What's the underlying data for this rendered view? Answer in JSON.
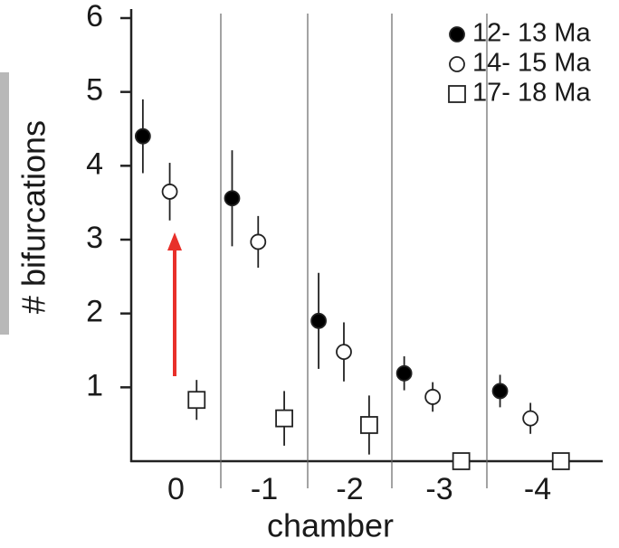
{
  "chart_data": {
    "type": "errorbar",
    "x_label": "chamber",
    "y_label": "# bifurcations",
    "categories": [
      "0",
      "-1",
      "-2",
      "-3",
      "-4"
    ],
    "ylim": [
      0,
      6
    ],
    "yticks": [
      1,
      2,
      3,
      4,
      5,
      6
    ],
    "series": [
      {
        "name": "12- 13 Ma",
        "marker": "circle",
        "fill": "#000000",
        "values": [
          4.4,
          3.56,
          1.9,
          1.19,
          0.95
        ],
        "errors": [
          0.5,
          0.65,
          0.65,
          0.23,
          0.22
        ]
      },
      {
        "name": "14- 15 Ma",
        "marker": "circle",
        "fill": "#ffffff",
        "values": [
          3.65,
          2.97,
          1.48,
          0.87,
          0.58
        ],
        "errors": [
          0.39,
          0.35,
          0.4,
          0.2,
          0.21
        ]
      },
      {
        "name": "17- 18 Ma",
        "marker": "square",
        "fill": "#ffffff",
        "values": [
          0.83,
          0.58,
          0.49,
          0,
          0
        ],
        "errors": [
          0.27,
          0.37,
          0.4,
          null,
          null
        ]
      }
    ]
  }
}
